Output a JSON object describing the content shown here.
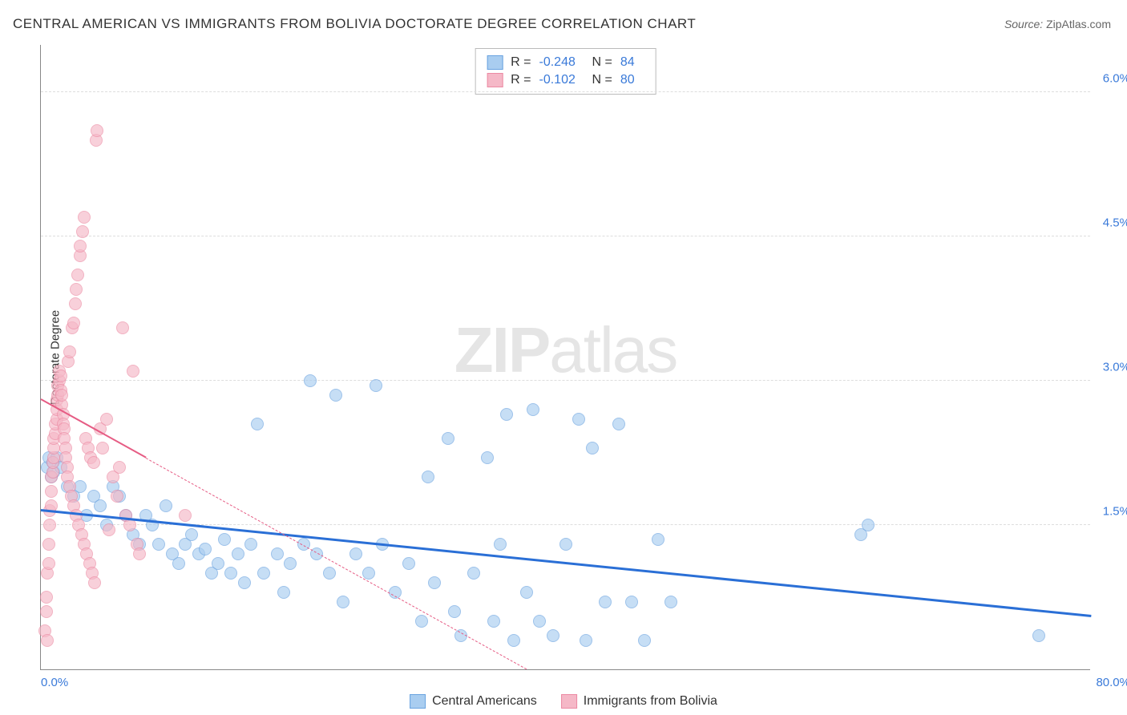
{
  "title": "CENTRAL AMERICAN VS IMMIGRANTS FROM BOLIVIA DOCTORATE DEGREE CORRELATION CHART",
  "source": {
    "label": "Source:",
    "value": "ZipAtlas.com"
  },
  "ylabel": "Doctorate Degree",
  "watermark": {
    "bold": "ZIP",
    "rest": "atlas"
  },
  "chart": {
    "type": "scatter",
    "background_color": "#ffffff",
    "grid_color": "#dddddd",
    "axis_color": "#888888",
    "tick_color": "#3a7ad9",
    "tick_fontsize": 15,
    "label_fontsize": 15,
    "title_fontsize": 17,
    "xlim": [
      0,
      80
    ],
    "ylim": [
      0,
      6.5
    ],
    "xticks": [
      {
        "value": 0,
        "label": "0.0%"
      },
      {
        "value": 80,
        "label": "80.0%"
      }
    ],
    "yticks": [
      {
        "value": 1.5,
        "label": "1.5%"
      },
      {
        "value": 3.0,
        "label": "3.0%"
      },
      {
        "value": 4.5,
        "label": "4.5%"
      },
      {
        "value": 6.0,
        "label": "6.0%"
      }
    ],
    "marker_radius": 8,
    "marker_opacity": 0.65,
    "series": [
      {
        "name": "Central Americans",
        "fill_color": "#a9cdf0",
        "stroke_color": "#6aa3e0",
        "trend_color": "#2a6fd6",
        "trend_width": 2.5,
        "R": "-0.248",
        "N": "84",
        "trend": {
          "x1": 0,
          "y1": 1.65,
          "x2": 80,
          "y2": 0.55,
          "dashed_after_x": null
        },
        "points": [
          [
            0.5,
            2.1
          ],
          [
            0.6,
            2.2
          ],
          [
            0.8,
            2.0
          ],
          [
            0.9,
            2.15
          ],
          [
            1.0,
            2.05
          ],
          [
            1.2,
            2.2
          ],
          [
            1.5,
            2.1
          ],
          [
            2.0,
            1.9
          ],
          [
            2.5,
            1.8
          ],
          [
            3.0,
            1.9
          ],
          [
            3.5,
            1.6
          ],
          [
            4.0,
            1.8
          ],
          [
            4.5,
            1.7
          ],
          [
            5.0,
            1.5
          ],
          [
            5.5,
            1.9
          ],
          [
            6.0,
            1.8
          ],
          [
            6.5,
            1.6
          ],
          [
            7.0,
            1.4
          ],
          [
            7.5,
            1.3
          ],
          [
            8.0,
            1.6
          ],
          [
            8.5,
            1.5
          ],
          [
            9.0,
            1.3
          ],
          [
            9.5,
            1.7
          ],
          [
            10.0,
            1.2
          ],
          [
            10.5,
            1.1
          ],
          [
            11.0,
            1.3
          ],
          [
            11.5,
            1.4
          ],
          [
            12.0,
            1.2
          ],
          [
            12.5,
            1.25
          ],
          [
            13.0,
            1.0
          ],
          [
            13.5,
            1.1
          ],
          [
            14.0,
            1.35
          ],
          [
            14.5,
            1.0
          ],
          [
            15.0,
            1.2
          ],
          [
            15.5,
            0.9
          ],
          [
            16.0,
            1.3
          ],
          [
            16.5,
            2.55
          ],
          [
            17.0,
            1.0
          ],
          [
            18.0,
            1.2
          ],
          [
            18.5,
            0.8
          ],
          [
            19.0,
            1.1
          ],
          [
            20.0,
            1.3
          ],
          [
            20.5,
            3.0
          ],
          [
            21.0,
            1.2
          ],
          [
            22.0,
            1.0
          ],
          [
            22.5,
            2.85
          ],
          [
            23.0,
            0.7
          ],
          [
            24.0,
            1.2
          ],
          [
            25.0,
            1.0
          ],
          [
            25.5,
            2.95
          ],
          [
            26.0,
            1.3
          ],
          [
            27.0,
            0.8
          ],
          [
            28.0,
            1.1
          ],
          [
            29.0,
            0.5
          ],
          [
            29.5,
            2.0
          ],
          [
            30.0,
            0.9
          ],
          [
            31.0,
            2.4
          ],
          [
            31.5,
            0.6
          ],
          [
            32.0,
            0.35
          ],
          [
            33.0,
            1.0
          ],
          [
            34.0,
            2.2
          ],
          [
            34.5,
            0.5
          ],
          [
            35.0,
            1.3
          ],
          [
            35.5,
            2.65
          ],
          [
            36.0,
            0.3
          ],
          [
            37.0,
            0.8
          ],
          [
            37.5,
            2.7
          ],
          [
            38.0,
            0.5
          ],
          [
            39.0,
            0.35
          ],
          [
            40.0,
            1.3
          ],
          [
            41.0,
            2.6
          ],
          [
            41.5,
            0.3
          ],
          [
            42.0,
            2.3
          ],
          [
            43.0,
            0.7
          ],
          [
            44.0,
            2.55
          ],
          [
            45.0,
            0.7
          ],
          [
            46.0,
            0.3
          ],
          [
            47.0,
            1.35
          ],
          [
            48.0,
            0.7
          ],
          [
            62.5,
            1.4
          ],
          [
            63.0,
            1.5
          ],
          [
            76.0,
            0.35
          ]
        ]
      },
      {
        "name": "Immigrants from Bolivia",
        "fill_color": "#f5b8c7",
        "stroke_color": "#ec8aa3",
        "trend_color": "#e65c84",
        "trend_width": 2,
        "R": "-0.102",
        "N": "80",
        "trend": {
          "x1": 0,
          "y1": 2.8,
          "x2": 37,
          "y2": 0.0,
          "dashed_after_x": 8
        },
        "points": [
          [
            0.3,
            0.4
          ],
          [
            0.4,
            0.6
          ],
          [
            0.4,
            0.75
          ],
          [
            0.5,
            0.3
          ],
          [
            0.5,
            1.0
          ],
          [
            0.6,
            1.1
          ],
          [
            0.6,
            1.3
          ],
          [
            0.7,
            1.5
          ],
          [
            0.7,
            1.65
          ],
          [
            0.8,
            1.7
          ],
          [
            0.8,
            1.85
          ],
          [
            0.8,
            2.0
          ],
          [
            0.9,
            2.05
          ],
          [
            0.9,
            2.15
          ],
          [
            1.0,
            2.2
          ],
          [
            1.0,
            2.3
          ],
          [
            1.0,
            2.4
          ],
          [
            1.1,
            2.45
          ],
          [
            1.1,
            2.55
          ],
          [
            1.2,
            2.6
          ],
          [
            1.2,
            2.7
          ],
          [
            1.2,
            2.8
          ],
          [
            1.3,
            2.85
          ],
          [
            1.3,
            2.95
          ],
          [
            1.4,
            3.0
          ],
          [
            1.4,
            3.1
          ],
          [
            1.5,
            2.9
          ],
          [
            1.5,
            3.05
          ],
          [
            1.6,
            2.75
          ],
          [
            1.6,
            2.85
          ],
          [
            1.7,
            2.65
          ],
          [
            1.7,
            2.55
          ],
          [
            1.8,
            2.5
          ],
          [
            1.8,
            2.4
          ],
          [
            1.9,
            2.3
          ],
          [
            1.9,
            2.2
          ],
          [
            2.0,
            2.1
          ],
          [
            2.0,
            2.0
          ],
          [
            2.1,
            3.2
          ],
          [
            2.2,
            3.3
          ],
          [
            2.2,
            1.9
          ],
          [
            2.3,
            1.8
          ],
          [
            2.4,
            3.55
          ],
          [
            2.5,
            3.6
          ],
          [
            2.5,
            1.7
          ],
          [
            2.6,
            3.8
          ],
          [
            2.7,
            3.95
          ],
          [
            2.7,
            1.6
          ],
          [
            2.8,
            4.1
          ],
          [
            2.9,
            1.5
          ],
          [
            3.0,
            4.3
          ],
          [
            3.0,
            4.4
          ],
          [
            3.1,
            1.4
          ],
          [
            3.2,
            4.55
          ],
          [
            3.3,
            4.7
          ],
          [
            3.3,
            1.3
          ],
          [
            3.4,
            2.4
          ],
          [
            3.5,
            1.2
          ],
          [
            3.6,
            2.3
          ],
          [
            3.7,
            1.1
          ],
          [
            3.8,
            2.2
          ],
          [
            3.9,
            1.0
          ],
          [
            4.0,
            2.15
          ],
          [
            4.1,
            0.9
          ],
          [
            4.2,
            5.5
          ],
          [
            4.3,
            5.6
          ],
          [
            4.5,
            2.5
          ],
          [
            4.7,
            2.3
          ],
          [
            5.0,
            2.6
          ],
          [
            5.2,
            1.45
          ],
          [
            5.5,
            2.0
          ],
          [
            5.8,
            1.8
          ],
          [
            6.0,
            2.1
          ],
          [
            6.2,
            3.55
          ],
          [
            6.5,
            1.6
          ],
          [
            6.8,
            1.5
          ],
          [
            7.0,
            3.1
          ],
          [
            7.3,
            1.3
          ],
          [
            7.5,
            1.2
          ],
          [
            11.0,
            1.6
          ]
        ]
      }
    ]
  },
  "legend": {
    "items": [
      {
        "label": "Central Americans",
        "fill": "#a9cdf0",
        "stroke": "#6aa3e0"
      },
      {
        "label": "Immigrants from Bolivia",
        "fill": "#f5b8c7",
        "stroke": "#ec8aa3"
      }
    ]
  }
}
